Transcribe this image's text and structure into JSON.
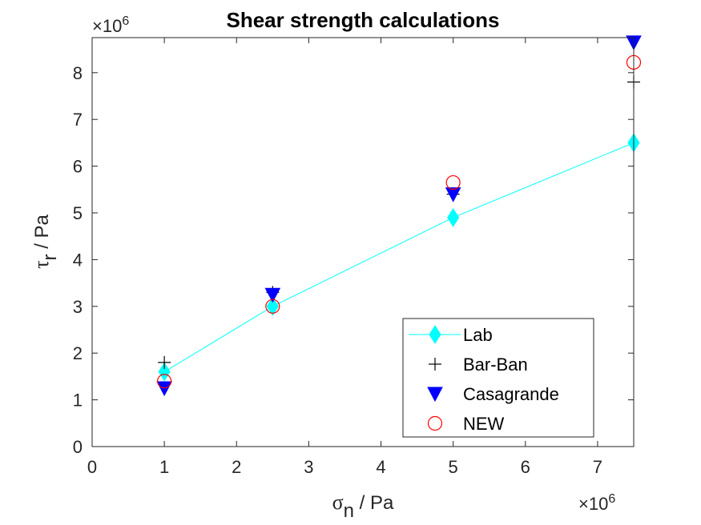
{
  "chart_data": {
    "type": "scatter",
    "title": "Shear strength calculations",
    "xlabel": {
      "symbol": "σ",
      "subscript": "n",
      "unit": " / Pa"
    },
    "ylabel": {
      "symbol": "τ",
      "subscript": "r",
      "unit": " / Pa"
    },
    "x_exponent": "×10^6",
    "y_exponent": "×10^6",
    "xlim": [
      0,
      7.5
    ],
    "ylim": [
      0,
      8.75
    ],
    "x_ticks": [
      0,
      1,
      2,
      3,
      4,
      5,
      6,
      7
    ],
    "y_ticks": [
      0,
      1,
      2,
      3,
      4,
      5,
      6,
      7,
      8
    ],
    "x_ticklabels": [
      "0",
      "1",
      "2",
      "3",
      "4",
      "5",
      "6",
      "7"
    ],
    "y_ticklabels": [
      "0",
      "1",
      "2",
      "3",
      "4",
      "5",
      "6",
      "7",
      "8"
    ],
    "grid": false,
    "legend_position": "bottom-right",
    "series": [
      {
        "name": "Lab",
        "marker": "diamond",
        "line": true,
        "color": "#00FFFF",
        "x": [
          1,
          2.5,
          5,
          7.5
        ],
        "y": [
          1.6,
          3.0,
          4.9,
          6.5
        ]
      },
      {
        "name": "Bar-Ban",
        "marker": "plus",
        "line": false,
        "color": "#000000",
        "x": [
          1,
          2.5,
          5,
          7.5
        ],
        "y": [
          1.8,
          3.3,
          5.4,
          7.8
        ]
      },
      {
        "name": "Casagrande",
        "marker": "triangle-down",
        "line": false,
        "color": "#0000FF",
        "x": [
          1,
          2.5,
          5,
          7.5
        ],
        "y": [
          1.25,
          3.25,
          5.4,
          8.65
        ]
      },
      {
        "name": "NEW",
        "marker": "circle",
        "line": false,
        "color": "#FF0000",
        "x": [
          1,
          2.5,
          5,
          7.5
        ],
        "y": [
          1.4,
          3.0,
          5.65,
          8.22
        ]
      }
    ]
  }
}
